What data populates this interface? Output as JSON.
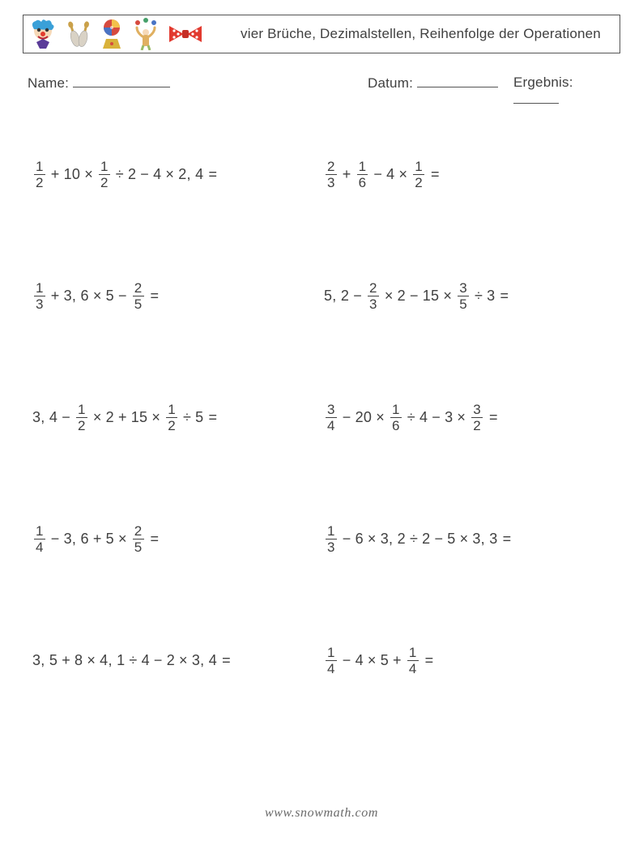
{
  "header": {
    "title": "vier Brüche, Dezimalstellen, Reihenfolge der Operationen",
    "icons": [
      "clown-icon",
      "juggling-pins-icon",
      "ball-icon",
      "juggler-icon",
      "bowtie-icon"
    ]
  },
  "meta": {
    "name_label": "Name:",
    "date_label": "Datum:",
    "score_label": "Ergebnis:"
  },
  "symbols": {
    "plus": "+",
    "minus": "−",
    "times": "×",
    "divide": "÷",
    "equals": "="
  },
  "problems": [
    [
      [
        {
          "t": "frac",
          "n": "1",
          "d": "2"
        },
        {
          "t": "op",
          "v": "plus"
        },
        {
          "t": "val",
          "v": "10"
        },
        {
          "t": "op",
          "v": "times"
        },
        {
          "t": "frac",
          "n": "1",
          "d": "2"
        },
        {
          "t": "op",
          "v": "divide"
        },
        {
          "t": "val",
          "v": "2"
        },
        {
          "t": "op",
          "v": "minus"
        },
        {
          "t": "val",
          "v": "4"
        },
        {
          "t": "op",
          "v": "times"
        },
        {
          "t": "val",
          "v": "2, 4"
        },
        {
          "t": "eq"
        }
      ],
      [
        {
          "t": "frac",
          "n": "2",
          "d": "3"
        },
        {
          "t": "op",
          "v": "plus"
        },
        {
          "t": "frac",
          "n": "1",
          "d": "6"
        },
        {
          "t": "op",
          "v": "minus"
        },
        {
          "t": "val",
          "v": "4"
        },
        {
          "t": "op",
          "v": "times"
        },
        {
          "t": "frac",
          "n": "1",
          "d": "2"
        },
        {
          "t": "eq"
        }
      ]
    ],
    [
      [
        {
          "t": "frac",
          "n": "1",
          "d": "3"
        },
        {
          "t": "op",
          "v": "plus"
        },
        {
          "t": "val",
          "v": "3, 6"
        },
        {
          "t": "op",
          "v": "times"
        },
        {
          "t": "val",
          "v": "5"
        },
        {
          "t": "op",
          "v": "minus"
        },
        {
          "t": "frac",
          "n": "2",
          "d": "5"
        },
        {
          "t": "eq"
        }
      ],
      [
        {
          "t": "val",
          "v": "5, 2"
        },
        {
          "t": "op",
          "v": "minus"
        },
        {
          "t": "frac",
          "n": "2",
          "d": "3"
        },
        {
          "t": "op",
          "v": "times"
        },
        {
          "t": "val",
          "v": "2"
        },
        {
          "t": "op",
          "v": "minus"
        },
        {
          "t": "val",
          "v": "15"
        },
        {
          "t": "op",
          "v": "times"
        },
        {
          "t": "frac",
          "n": "3",
          "d": "5"
        },
        {
          "t": "op",
          "v": "divide"
        },
        {
          "t": "val",
          "v": "3"
        },
        {
          "t": "eq"
        }
      ]
    ],
    [
      [
        {
          "t": "val",
          "v": "3, 4"
        },
        {
          "t": "op",
          "v": "minus"
        },
        {
          "t": "frac",
          "n": "1",
          "d": "2"
        },
        {
          "t": "op",
          "v": "times"
        },
        {
          "t": "val",
          "v": "2"
        },
        {
          "t": "op",
          "v": "plus"
        },
        {
          "t": "val",
          "v": "15"
        },
        {
          "t": "op",
          "v": "times"
        },
        {
          "t": "frac",
          "n": "1",
          "d": "2"
        },
        {
          "t": "op",
          "v": "divide"
        },
        {
          "t": "val",
          "v": "5"
        },
        {
          "t": "eq"
        }
      ],
      [
        {
          "t": "frac",
          "n": "3",
          "d": "4"
        },
        {
          "t": "op",
          "v": "minus"
        },
        {
          "t": "val",
          "v": "20"
        },
        {
          "t": "op",
          "v": "times"
        },
        {
          "t": "frac",
          "n": "1",
          "d": "6"
        },
        {
          "t": "op",
          "v": "divide"
        },
        {
          "t": "val",
          "v": "4"
        },
        {
          "t": "op",
          "v": "minus"
        },
        {
          "t": "val",
          "v": "3"
        },
        {
          "t": "op",
          "v": "times"
        },
        {
          "t": "frac",
          "n": "3",
          "d": "2"
        },
        {
          "t": "eq"
        }
      ]
    ],
    [
      [
        {
          "t": "frac",
          "n": "1",
          "d": "4"
        },
        {
          "t": "op",
          "v": "minus"
        },
        {
          "t": "val",
          "v": "3, 6"
        },
        {
          "t": "op",
          "v": "plus"
        },
        {
          "t": "val",
          "v": "5"
        },
        {
          "t": "op",
          "v": "times"
        },
        {
          "t": "frac",
          "n": "2",
          "d": "5"
        },
        {
          "t": "eq"
        }
      ],
      [
        {
          "t": "frac",
          "n": "1",
          "d": "3"
        },
        {
          "t": "op",
          "v": "minus"
        },
        {
          "t": "val",
          "v": "6"
        },
        {
          "t": "op",
          "v": "times"
        },
        {
          "t": "val",
          "v": "3, 2"
        },
        {
          "t": "op",
          "v": "divide"
        },
        {
          "t": "val",
          "v": "2"
        },
        {
          "t": "op",
          "v": "minus"
        },
        {
          "t": "val",
          "v": "5"
        },
        {
          "t": "op",
          "v": "times"
        },
        {
          "t": "val",
          "v": "3, 3"
        },
        {
          "t": "eq"
        }
      ]
    ],
    [
      [
        {
          "t": "val",
          "v": "3, 5"
        },
        {
          "t": "op",
          "v": "plus"
        },
        {
          "t": "val",
          "v": "8"
        },
        {
          "t": "op",
          "v": "times"
        },
        {
          "t": "val",
          "v": "4, 1"
        },
        {
          "t": "op",
          "v": "divide"
        },
        {
          "t": "val",
          "v": "4"
        },
        {
          "t": "op",
          "v": "minus"
        },
        {
          "t": "val",
          "v": "2"
        },
        {
          "t": "op",
          "v": "times"
        },
        {
          "t": "val",
          "v": "3, 4"
        },
        {
          "t": "eq"
        }
      ],
      [
        {
          "t": "frac",
          "n": "1",
          "d": "4"
        },
        {
          "t": "op",
          "v": "minus"
        },
        {
          "t": "val",
          "v": "4"
        },
        {
          "t": "op",
          "v": "times"
        },
        {
          "t": "val",
          "v": "5"
        },
        {
          "t": "op",
          "v": "plus"
        },
        {
          "t": "frac",
          "n": "1",
          "d": "4"
        },
        {
          "t": "eq"
        }
      ]
    ]
  ],
  "footer": {
    "prefix": "www.",
    "mid": "snowmath",
    "suffix": ".com"
  },
  "colors": {
    "text": "#404040",
    "border": "#555555",
    "background": "#ffffff",
    "footer": "#6a6a6a",
    "clown_hair": "#3aa0d8",
    "clown_face": "#f6d9b8",
    "clown_nose": "#e33b2e",
    "clown_bow": "#5a3b98",
    "pin_handle": "#caa14a",
    "pin_body": "#d9d2c5",
    "ball_red": "#d64a3f",
    "ball_yellow": "#f3c14b",
    "ball_blue": "#4a74c4",
    "juggler_body": "#e0b061",
    "bowtie": "#e23a2f",
    "bowtie_dot": "#ffffff"
  }
}
